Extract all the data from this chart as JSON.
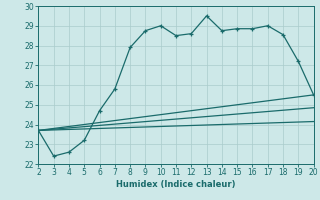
{
  "xlabel": "Humidex (Indice chaleur)",
  "bg_color": "#cde8e8",
  "grid_color": "#aacccc",
  "line_color": "#1a6b6b",
  "x_ticks": [
    2,
    3,
    4,
    5,
    6,
    7,
    8,
    9,
    10,
    11,
    12,
    13,
    14,
    15,
    16,
    17,
    18,
    19,
    20
  ],
  "ylim": [
    22,
    30
  ],
  "xlim": [
    2,
    20
  ],
  "y_ticks": [
    22,
    23,
    24,
    25,
    26,
    27,
    28,
    29,
    30
  ],
  "main_line_x": [
    2,
    3,
    4,
    5,
    6,
    7,
    8,
    9,
    10,
    11,
    12,
    13,
    14,
    15,
    16,
    17,
    18,
    19,
    20
  ],
  "main_line_y": [
    23.7,
    22.4,
    22.6,
    23.2,
    24.7,
    25.8,
    27.9,
    28.75,
    29.0,
    28.5,
    28.6,
    29.5,
    28.75,
    28.85,
    28.85,
    29.0,
    28.55,
    27.2,
    25.5
  ],
  "upper_line_x": [
    2,
    20
  ],
  "upper_line_y": [
    23.7,
    25.5
  ],
  "middle_line_x": [
    2,
    20
  ],
  "middle_line_y": [
    23.7,
    24.85
  ],
  "lower_line_x": [
    2,
    20
  ],
  "lower_line_y": [
    23.7,
    24.15
  ]
}
